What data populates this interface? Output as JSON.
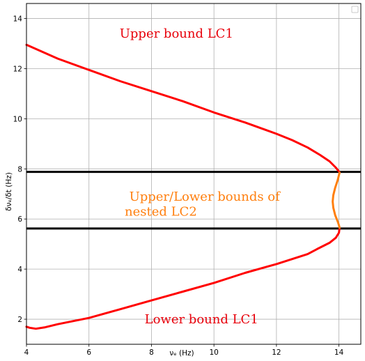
{
  "chart_data": {
    "type": "line",
    "xlabel": "νₑ  (Hz)",
    "ylabel": "δνₑ/δt (Hz)",
    "xlim": [
      4,
      14.7
    ],
    "ylim": [
      1,
      14.6
    ],
    "xticks": [
      4,
      6,
      8,
      10,
      12,
      14
    ],
    "yticks": [
      2,
      4,
      6,
      8,
      10,
      12,
      14
    ],
    "grid": true,
    "legend": "top-right (empty)",
    "series": [
      {
        "color": "#ff0000",
        "x": [
          4.0,
          5.0,
          6.0,
          7.0,
          8.0,
          9.0,
          10.0,
          11.0,
          12.0,
          12.5,
          13.0,
          13.4,
          13.7,
          13.9,
          14.0,
          14.02
        ],
        "y": [
          12.95,
          12.4,
          11.95,
          11.5,
          11.1,
          10.7,
          10.25,
          9.85,
          9.4,
          9.15,
          8.85,
          8.55,
          8.3,
          8.05,
          7.9,
          7.85
        ]
      },
      {
        "color": "#ff0000",
        "x": [
          14.02,
          14.0,
          13.9,
          13.7,
          13.3,
          13.0,
          12.0,
          11.0,
          10.0,
          9.0,
          8.0,
          7.0,
          6.0,
          5.0,
          4.6,
          4.3,
          4.1,
          4.0
        ],
        "y": [
          5.65,
          5.45,
          5.25,
          5.05,
          4.8,
          4.6,
          4.2,
          3.85,
          3.45,
          3.1,
          2.75,
          2.4,
          2.05,
          1.8,
          1.68,
          1.62,
          1.66,
          1.7
        ]
      },
      {
        "color": "#ff7f0e",
        "x": [
          14.02,
          13.96,
          13.88,
          13.82,
          13.8,
          13.82,
          13.88,
          13.96,
          14.0,
          14.02
        ],
        "y": [
          7.85,
          7.55,
          7.25,
          6.95,
          6.7,
          6.45,
          6.15,
          5.9,
          5.75,
          5.65
        ]
      }
    ],
    "hlines": [
      {
        "y": 7.88,
        "color": "#000000"
      },
      {
        "y": 5.62,
        "color": "#000000"
      }
    ],
    "annotations": [
      {
        "text": "Upper  bound  LC1",
        "x": 8.8,
        "y": 13.4,
        "color": "#e8000b"
      },
      {
        "text": "Upper/Lower  bounds  of",
        "x": 9.7,
        "y": 6.9,
        "color": "#ff7f0e"
      },
      {
        "text": "nested  LC2",
        "x": 8.3,
        "y": 6.3,
        "color": "#ff7f0e"
      },
      {
        "text": "Lower  bound  LC1",
        "x": 9.6,
        "y": 2.0,
        "color": "#e8000b"
      }
    ]
  }
}
